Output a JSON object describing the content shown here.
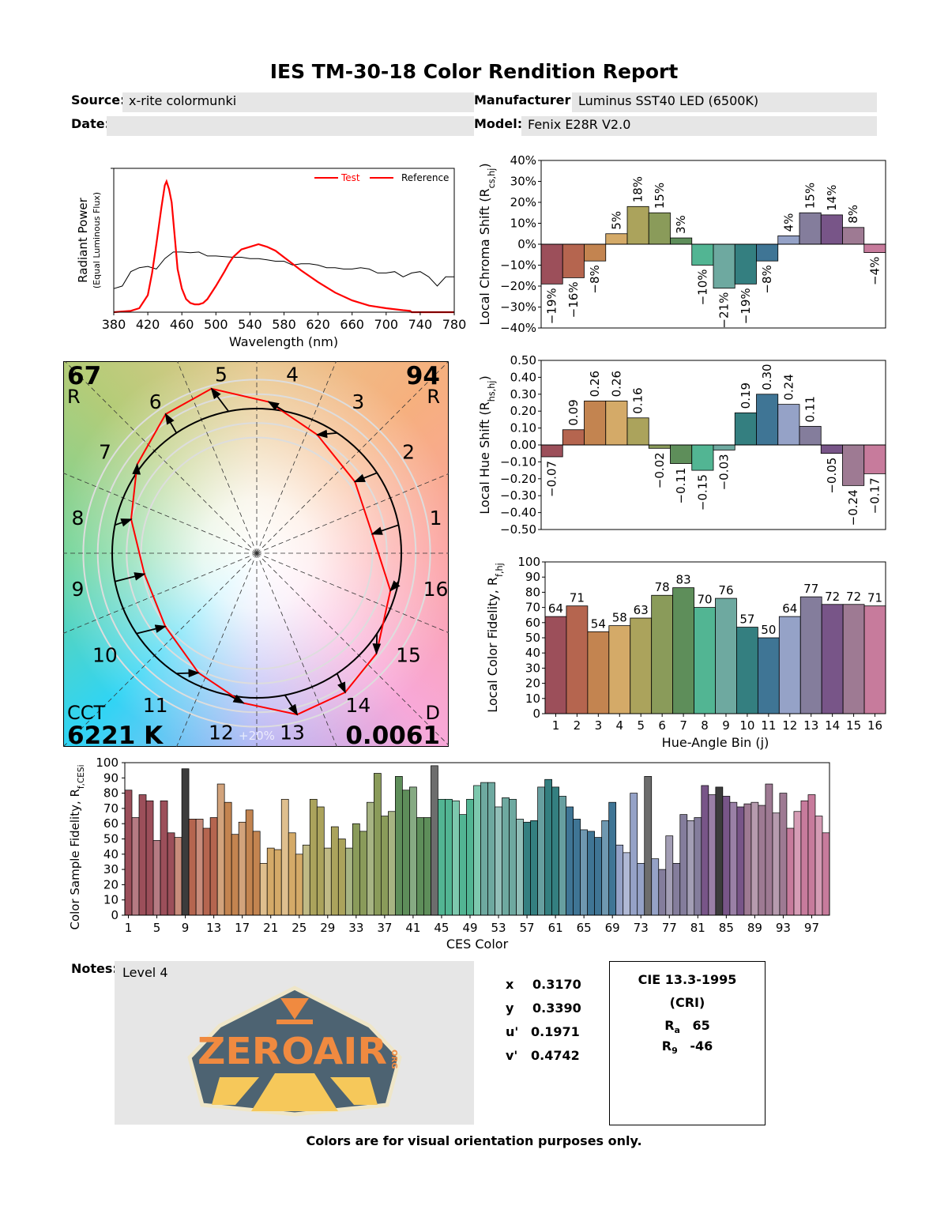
{
  "header": {
    "title": "IES TM-30-18 Color Rendition Report",
    "source_label": "Source:",
    "source_value": "x-rite colormunki",
    "date_label": "Date:",
    "date_value": "",
    "manufacturer_label": "Manufacturer:",
    "manufacturer_value": "Luminus SST40 LED (6500K)",
    "model_label": "Model:",
    "model_value": "Fenix E28R V2.0"
  },
  "vector_graphic": {
    "rf_value": "67",
    "rf_label": "R",
    "rf_sub": "f",
    "rg_value": "94",
    "rg_label": "R",
    "rg_sub": "g",
    "cct_label": "CCT",
    "cct_value": "6221 K",
    "duv_label": "D",
    "duv_sub": "uv",
    "duv_value": "0.0061",
    "bin_labels": [
      "1",
      "2",
      "3",
      "4",
      "5",
      "6",
      "7",
      "8",
      "9",
      "10",
      "11",
      "12",
      "13",
      "14",
      "15",
      "16"
    ],
    "scale_label": "+20%",
    "colors": {
      "test": "#ff0000",
      "reference": "#000000",
      "rings": "#dddddd"
    }
  },
  "chart_data": [
    {
      "type": "line",
      "xlabel": "Wavelength (nm)",
      "ylabel": "Radiant Power",
      "ylabel2": "(Equal Luminous Flux)",
      "xlim": [
        380,
        780
      ],
      "xticks": [
        "380",
        "420",
        "460",
        "500",
        "540",
        "580",
        "620",
        "660",
        "700",
        "740",
        "780"
      ],
      "legend": {
        "placement": "top-right",
        "entries": [
          "Test",
          "Reference"
        ]
      },
      "series": [
        {
          "name": "Test",
          "color": "#ff0000",
          "x": [
            380,
            400,
            410,
            420,
            425,
            430,
            436,
            440,
            442,
            445,
            448,
            452,
            455,
            460,
            465,
            470,
            475,
            480,
            485,
            490,
            500,
            510,
            515,
            520,
            530,
            540,
            550,
            560,
            570,
            580,
            590,
            600,
            620,
            640,
            660,
            680,
            700,
            720,
            728,
            730,
            780
          ],
          "y": [
            0,
            0.01,
            0.03,
            0.13,
            0.3,
            0.52,
            0.8,
            0.97,
            1.0,
            0.94,
            0.84,
            0.55,
            0.33,
            0.18,
            0.1,
            0.07,
            0.06,
            0.06,
            0.07,
            0.1,
            0.2,
            0.31,
            0.37,
            0.42,
            0.48,
            0.5,
            0.52,
            0.5,
            0.47,
            0.42,
            0.37,
            0.32,
            0.23,
            0.15,
            0.09,
            0.05,
            0.03,
            0.015,
            0.01,
            0,
            0
          ]
        },
        {
          "name": "Reference",
          "color": "#000000",
          "x": [
            380,
            390,
            400,
            410,
            420,
            430,
            440,
            450,
            460,
            470,
            480,
            490,
            500,
            510,
            520,
            530,
            540,
            550,
            560,
            570,
            580,
            590,
            600,
            610,
            620,
            630,
            640,
            650,
            660,
            670,
            680,
            690,
            700,
            710,
            720,
            730,
            740,
            750,
            760,
            770,
            780
          ],
          "y": [
            0.18,
            0.2,
            0.31,
            0.34,
            0.35,
            0.33,
            0.41,
            0.46,
            0.46,
            0.455,
            0.46,
            0.43,
            0.43,
            0.425,
            0.42,
            0.42,
            0.41,
            0.41,
            0.4,
            0.39,
            0.39,
            0.36,
            0.37,
            0.37,
            0.36,
            0.34,
            0.34,
            0.33,
            0.33,
            0.34,
            0.33,
            0.3,
            0.3,
            0.31,
            0.27,
            0.3,
            0.31,
            0.27,
            0.2,
            0.27,
            0.27
          ]
        }
      ]
    },
    {
      "type": "bar",
      "ylabel": "Local Chroma Shift (R",
      "ylabel_sub": "cs,hj",
      "ylabel_end": ")",
      "ylim": [
        -40,
        40
      ],
      "yticks": [
        "40%",
        "30%",
        "20%",
        "10%",
        "0%",
        "−10%",
        "−20%",
        "−30%",
        "−40%"
      ],
      "categories": [
        "1",
        "2",
        "3",
        "4",
        "5",
        "6",
        "7",
        "8",
        "9",
        "10",
        "11",
        "12",
        "13",
        "14",
        "15",
        "16"
      ],
      "values": [
        -19,
        -16,
        -8,
        5,
        18,
        15,
        3,
        -10,
        -21,
        -19,
        -8,
        4,
        15,
        14,
        8,
        -4
      ],
      "value_labels": [
        "−19%",
        "−16%",
        "−8%",
        "5%",
        "18%",
        "15%",
        "3%",
        "−10%",
        "−21%",
        "−19%",
        "−8%",
        "4%",
        "15%",
        "14%",
        "8%",
        "−4%"
      ]
    },
    {
      "type": "bar",
      "ylabel": "Local Hue Shift (R",
      "ylabel_sub": "hs,hj",
      "ylabel_end": ")",
      "ylim": [
        -0.5,
        0.5
      ],
      "yticks": [
        "0.50",
        "0.40",
        "0.30",
        "0.20",
        "0.10",
        "0.00",
        "−0.10",
        "−0.20",
        "−0.30",
        "−0.40",
        "−0.50"
      ],
      "categories": [
        "1",
        "2",
        "3",
        "4",
        "5",
        "6",
        "7",
        "8",
        "9",
        "10",
        "11",
        "12",
        "13",
        "14",
        "15",
        "16"
      ],
      "values": [
        -0.07,
        0.09,
        0.26,
        0.26,
        0.16,
        -0.02,
        -0.11,
        -0.15,
        -0.03,
        0.19,
        0.3,
        0.24,
        0.11,
        -0.05,
        -0.24,
        -0.17
      ],
      "value_labels": [
        "−0.07",
        "0.09",
        "0.26",
        "0.26",
        "0.16",
        "−0.02",
        "−0.11",
        "−0.15",
        "−0.03",
        "0.19",
        "0.30",
        "0.24",
        "0.11",
        "−0.05",
        "−0.24",
        "−0.17"
      ]
    },
    {
      "type": "bar",
      "xlabel": "Hue-Angle Bin (j)",
      "ylabel": "Local Color Fidelity, R",
      "ylabel_sub": "f,hj",
      "ylim": [
        0,
        100
      ],
      "yticks": [
        "100",
        "90",
        "80",
        "70",
        "60",
        "50",
        "40",
        "30",
        "20",
        "10",
        "0"
      ],
      "categories": [
        "1",
        "2",
        "3",
        "4",
        "5",
        "6",
        "7",
        "8",
        "9",
        "10",
        "11",
        "12",
        "13",
        "14",
        "15",
        "16"
      ],
      "values": [
        64,
        71,
        54,
        58,
        63,
        78,
        83,
        70,
        76,
        57,
        50,
        64,
        77,
        72,
        72,
        71
      ],
      "value_labels": [
        "64",
        "71",
        "54",
        "58",
        "63",
        "78",
        "83",
        "70",
        "76",
        "57",
        "50",
        "64",
        "77",
        "72",
        "72",
        "71"
      ]
    },
    {
      "type": "bar",
      "xlabel": "CES Color",
      "ylabel": "Color Sample Fidelity, R",
      "ylabel_sub": "f,CESi",
      "ylim": [
        0,
        100
      ],
      "yticks": [
        "100",
        "90",
        "80",
        "70",
        "60",
        "50",
        "40",
        "30",
        "20",
        "10",
        "0"
      ],
      "xticks": [
        "1",
        "5",
        "9",
        "13",
        "17",
        "21",
        "25",
        "29",
        "33",
        "37",
        "41",
        "45",
        "49",
        "53",
        "57",
        "61",
        "65",
        "69",
        "73",
        "77",
        "81",
        "85",
        "89",
        "93",
        "97"
      ],
      "values": [
        82,
        64,
        79,
        75,
        49,
        75,
        54,
        51,
        96,
        63,
        63,
        57,
        64,
        86,
        74,
        53,
        61,
        69,
        55,
        34,
        44,
        43,
        76,
        54,
        40,
        46,
        76,
        71,
        44,
        58,
        50,
        44,
        60,
        55,
        74,
        93,
        65,
        68,
        91,
        82,
        84,
        64,
        64,
        98,
        76,
        76,
        75,
        66,
        76,
        85,
        87,
        87,
        71,
        77,
        76,
        63,
        61,
        62,
        84,
        89,
        84,
        78,
        71,
        63,
        56,
        55,
        51,
        62,
        74,
        46,
        41,
        80,
        34,
        91,
        37,
        30,
        52,
        34,
        66,
        62,
        64,
        85,
        79,
        84,
        78,
        74,
        71,
        73,
        74,
        72,
        86,
        67,
        80,
        57,
        68,
        75,
        79,
        65,
        54
      ]
    }
  ],
  "bin_colors": [
    "#9c4f5a",
    "#b5654f",
    "#c38450",
    "#d4aa68",
    "#aba35c",
    "#8a9b5a",
    "#5e8e5a",
    "#52b593",
    "#6ea9a0",
    "#347f80",
    "#3f7595",
    "#95a2c7",
    "#847d9c",
    "#785588",
    "#9e7a93",
    "#c77b9c"
  ],
  "notes": {
    "label": "Notes:",
    "value": "Level 4"
  },
  "chromaticity": [
    {
      "label": "x",
      "value": "0.3170"
    },
    {
      "label": "y",
      "value": "0.3390"
    },
    {
      "label": "u'",
      "value": "0.1971"
    },
    {
      "label": "v'",
      "value": "0.4742"
    }
  ],
  "cri": {
    "title": "CIE 13.3-1995",
    "subtitle": "(CRI)",
    "ra_label": "R",
    "ra_sub": "a",
    "ra_value": "65",
    "r9_label": "R",
    "r9_sub": "9",
    "r9_value": "-46"
  },
  "footer": "Colors are for visual orientation purposes only.",
  "watermark": {
    "text": "ZEROAIR",
    "suffix": "ORG"
  }
}
